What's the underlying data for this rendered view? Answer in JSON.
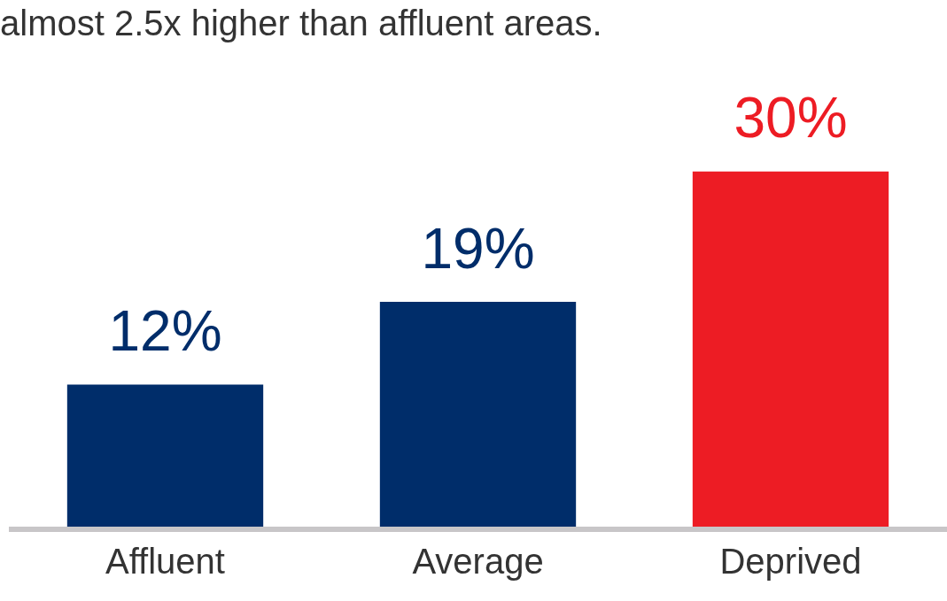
{
  "chart_data": {
    "type": "bar",
    "title": "almost 2.5x higher than affluent areas.",
    "categories": [
      "Affluent",
      "Average",
      "Deprived"
    ],
    "values": [
      12,
      19,
      30
    ],
    "colors": [
      "#002d6a",
      "#002d6a",
      "#ed1c24"
    ],
    "value_labels": [
      "12%",
      "19%",
      "30%"
    ],
    "grid": false,
    "legend": false
  }
}
